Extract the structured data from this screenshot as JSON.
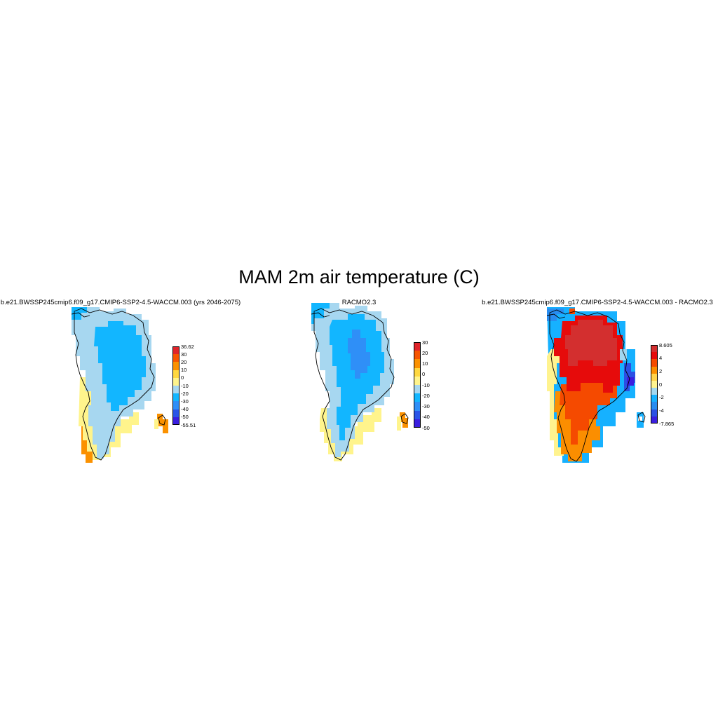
{
  "figure": {
    "title": "MAM 2m air temperature (C)"
  },
  "panels": [
    {
      "id": "model",
      "title": "b.e21.BWSSP245cmip6.f09_g17.CMIP6-SSP2-4.5-WACCM.003 (yrs 2046-2075)",
      "colorbar": {
        "colors": [
          "#e0242a",
          "#f75500",
          "#fb9100",
          "#ffd840",
          "#fff48c",
          "#a7d7f0",
          "#12b6ff",
          "#2f8ff7",
          "#2a55e8",
          "#3a1ee0"
        ],
        "labels": [
          "36.62",
          "30",
          "20",
          "10",
          "0",
          "-10",
          "-20",
          "-30",
          "-40",
          "-50",
          "-55.51"
        ]
      }
    },
    {
      "id": "racmo",
      "title": "RACMO2.3",
      "colorbar": {
        "colors": [
          "#e0242a",
          "#f75500",
          "#fb9100",
          "#ffd840",
          "#fff48c",
          "#a7d7f0",
          "#12b6ff",
          "#2f8ff7",
          "#2a55e8",
          "#3a1ee0"
        ],
        "labels": [
          "30",
          "20",
          "10",
          "0",
          "-10",
          "-20",
          "-30",
          "-40",
          "-50"
        ]
      }
    },
    {
      "id": "diff",
      "title": "b.e21.BWSSP245cmip6.f09_g17.CMIP6-SSP2-4.5-WACCM.003 - RACMO2.3",
      "colorbar": {
        "colors": [
          "#d32f2f",
          "#e60b0b",
          "#f54a00",
          "#fb8e00",
          "#ffd24a",
          "#fff38f",
          "#a2d7f0",
          "#16b1ff",
          "#288cf0",
          "#2b50e4",
          "#3a1ee0"
        ],
        "labels": [
          "8.605",
          "4",
          "2",
          "0",
          "-2",
          "-4",
          "-7.865"
        ]
      }
    }
  ]
}
